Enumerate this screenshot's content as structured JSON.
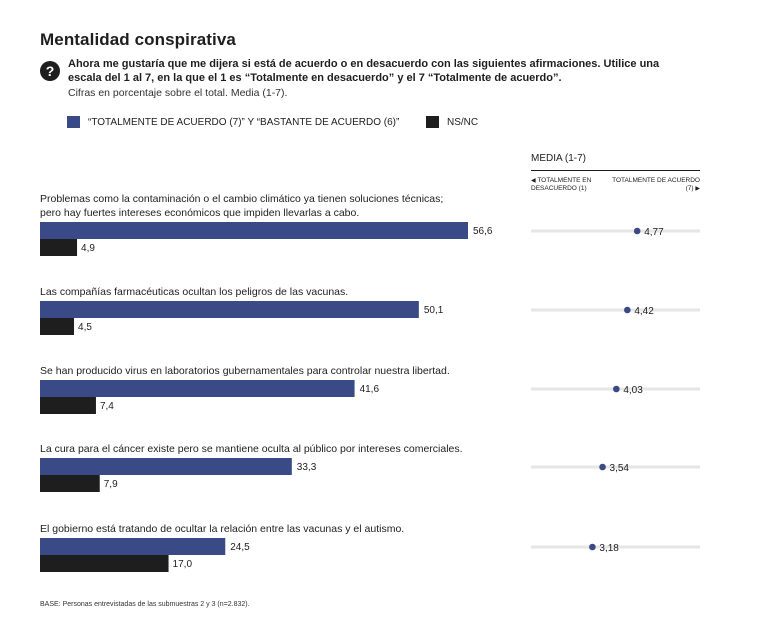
{
  "title": "Mentalidad conspirativa",
  "question": "Ahora me gustaría que me dijera si está de acuerdo o en desacuerdo con las siguientes afirmaciones. Utilice una escala del 1 al 7, en la que el 1 es “Totalmente en desacuerdo” y el 7 “Totalmente de acuerdo”.",
  "subtitle": "Cifras en porcentaje sobre el total. Media (1-7).",
  "question_icon": "?",
  "legend": [
    {
      "label": "“TOTALMENTE DE ACUERDO (7)” Y “BASTANTE DE ACUERDO (6)”",
      "color": "#3a4a86"
    },
    {
      "label": "NS/NC",
      "color": "#1e1e1e"
    }
  ],
  "media_header": "MEDIA (1-7)",
  "scale_left": "TOTALMENTE EN DESACUERDO (1)",
  "scale_right": "TOTALMENTE DE ACUERDO (7)",
  "base_note": "BASE: Personas entrevistadas de las submuestras 2 y 3 (n=2.832).",
  "chart_data": {
    "type": "bar",
    "orientation": "horizontal",
    "xlim": [
      0,
      60
    ],
    "categories": [
      [
        "Problemas como la contaminación o el cambio climático ya tienen soluciones técnicas;",
        "pero hay fuertes intereses económicos que impiden llevarlas a cabo."
      ],
      [
        "Las compañías farmacéuticas ocultan los peligros de las vacunas."
      ],
      [
        "Se han producido virus en laboratorios gubernamentales para controlar nuestra libertad."
      ],
      [
        "La cura para el cáncer existe pero se mantiene oculta al público por intereses comerciales."
      ],
      [
        "El gobierno está tratando de ocultar la relación entre las vacunas y el autismo."
      ]
    ],
    "series": [
      {
        "name": "“TOTALMENTE DE ACUERDO (7)” Y “BASTANTE DE ACUERDO (6)”",
        "values": [
          56.6,
          50.1,
          41.6,
          33.3,
          24.5
        ],
        "labels": [
          "56,6",
          "50,1",
          "41,6",
          "33,3",
          "24,5"
        ],
        "color": "#3a4a86"
      },
      {
        "name": "NS/NC",
        "values": [
          4.9,
          4.5,
          7.4,
          7.9,
          17.0
        ],
        "labels": [
          "4,9",
          "4,5",
          "7,4",
          "7,9",
          "17,0"
        ],
        "color": "#1e1e1e"
      }
    ],
    "media": {
      "range": [
        1,
        7
      ],
      "values": [
        4.77,
        4.42,
        4.03,
        3.54,
        3.18
      ],
      "labels": [
        "4,77",
        "4,42",
        "4,03",
        "3,54",
        "3,18"
      ],
      "dot_color": "#3a4a86",
      "track_color": "#e6e6e6"
    }
  }
}
